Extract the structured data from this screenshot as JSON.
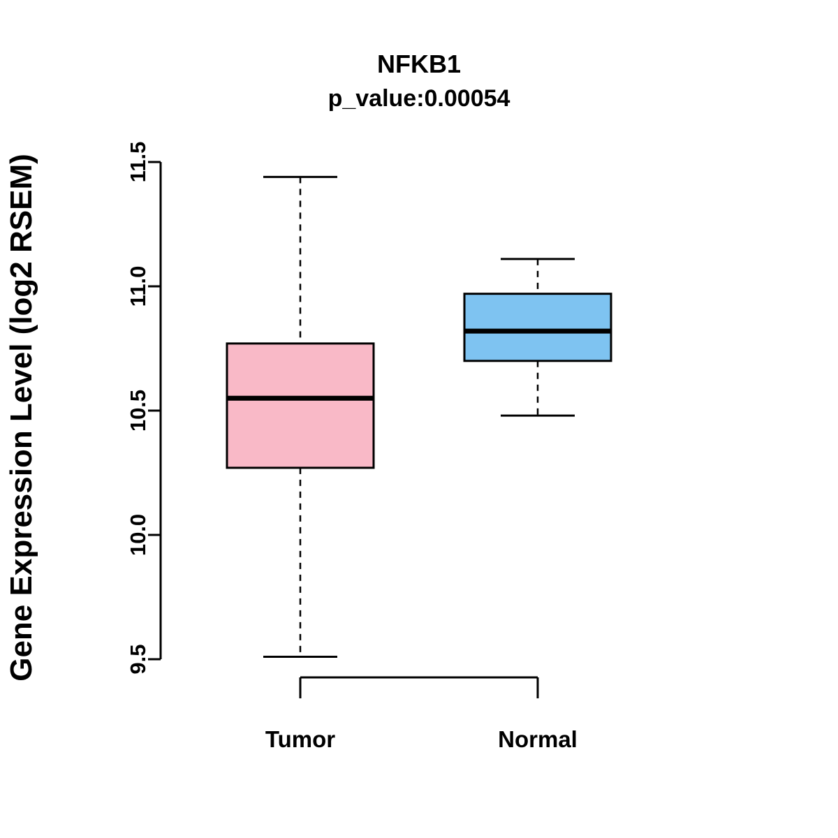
{
  "figure": {
    "background": "#FFFFFF"
  },
  "chart_data": {
    "type": "boxplot",
    "title": "NFKB1",
    "subtitle": "p_value:0.00054",
    "ylabel": "Gene Expression Level (log2 RSEM)",
    "xlabel": "",
    "categories": [
      "Tumor",
      "Normal"
    ],
    "series": [
      {
        "name": "Tumor",
        "lower_whisker": 9.51,
        "q1": 10.27,
        "median": 10.55,
        "q3": 10.77,
        "upper_whisker": 11.44,
        "fill_color": "#F9B9C7"
      },
      {
        "name": "Normal",
        "lower_whisker": 10.48,
        "q1": 10.7,
        "median": 10.82,
        "q3": 10.97,
        "upper_whisker": 11.11,
        "fill_color": "#7EC3F1"
      }
    ],
    "ylim": [
      9.5,
      11.5
    ],
    "yticks": [
      9.5,
      10.0,
      10.5,
      11.0,
      11.5
    ],
    "ytick_labels": [
      "9.5",
      "10.0",
      "10.5",
      "11.0",
      "11.5"
    ],
    "grid": false,
    "legend": "none",
    "whisker_style": "dashed",
    "stroke_color": "#000000"
  }
}
